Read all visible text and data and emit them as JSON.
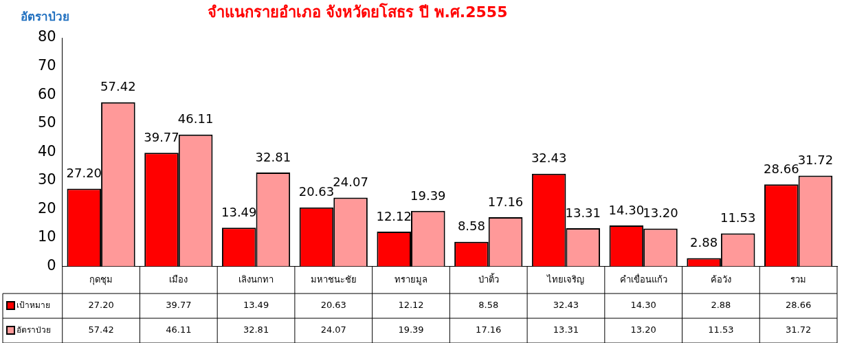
{
  "chart_data": {
    "type": "bar",
    "title": "จำแนกรายอำเภอ จังหวัดยโสธร ปี พ.ศ.2555",
    "ylabel": "อัตราป่วย",
    "categories": [
      "กุดชุม",
      "เมือง",
      "เลิงนกทา",
      "มหาชนะชัย",
      "ทรายมูล",
      "ป่าติ้ว",
      "ไทยเจริญ",
      "คำเขื่อนแก้ว",
      "ค้อวัง",
      "รวม"
    ],
    "series": [
      {
        "name": "เป้าหมาย",
        "color": "#ff0000",
        "values": [
          27.2,
          39.77,
          13.49,
          20.63,
          12.12,
          8.58,
          32.43,
          14.3,
          2.88,
          28.66
        ],
        "value_labels": [
          "27.20",
          "39.77",
          "13.49",
          "20.63",
          "12.12",
          "8.58",
          "32.43",
          "14.30",
          "2.88",
          "28.66"
        ]
      },
      {
        "name": "อัตราป่วย",
        "color": "#ff9999",
        "values": [
          57.42,
          46.11,
          32.81,
          24.07,
          19.39,
          17.16,
          13.31,
          13.2,
          11.53,
          31.72
        ],
        "value_labels": [
          "57.42",
          "46.11",
          "32.81",
          "24.07",
          "19.39",
          "17.16",
          "13.31",
          "13.20",
          "11.53",
          "31.72"
        ]
      }
    ],
    "ylim": [
      0,
      80
    ],
    "yticks": [
      0,
      10,
      20,
      30,
      40,
      50,
      60,
      70,
      80
    ],
    "grid": false,
    "legend": "bottom"
  }
}
